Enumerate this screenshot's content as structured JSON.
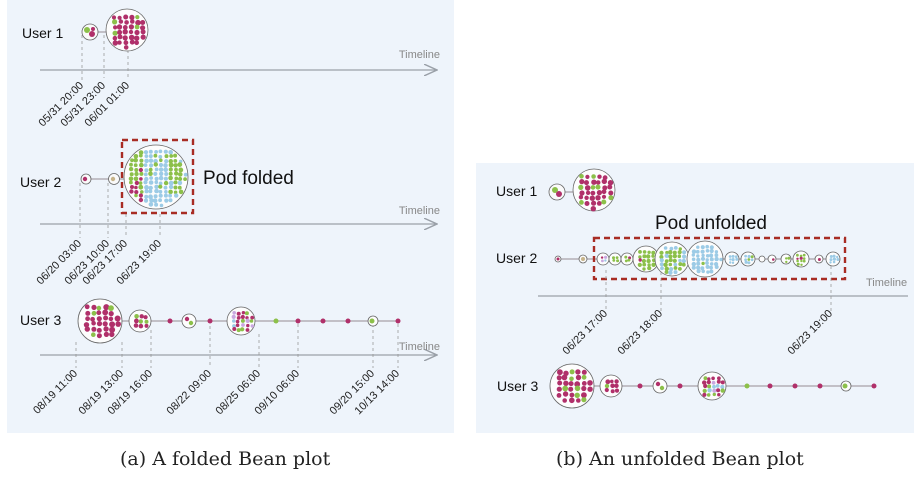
{
  "panel_a": {
    "users": [
      {
        "label": "User 1",
        "timeline_label": "Timeline",
        "dates": [
          "05/31 20:00",
          "05/31 23:00",
          "06/01 01:00"
        ]
      },
      {
        "label": "User 2",
        "timeline_label": "Timeline",
        "pod_label": "Pod folded",
        "dates": [
          "06/20 03:00",
          "06/23 10:00",
          "06/23 17:00",
          "06/23 19:00"
        ]
      },
      {
        "label": "User 3",
        "timeline_label": "Timeline",
        "dates": [
          "08/19 11:00",
          "08/19 13:00",
          "08/19 16:00",
          "08/22 09:00",
          "08/25 06:00",
          "09/10 06:00",
          "09/20 15:00",
          "10/13 14:00"
        ]
      }
    ]
  },
  "panel_b": {
    "users": [
      {
        "label": "User 1"
      },
      {
        "label": "User 2",
        "pod_label": "Pod unfolded",
        "timeline_label": "Timeline",
        "dates": [
          "06/23 17:00",
          "06/23 18:00",
          "06/23 19:00"
        ]
      },
      {
        "label": "User 3"
      }
    ]
  },
  "captions": {
    "a": "(a) A folded Bean plot",
    "b": "(b) An unfolded Bean plot"
  },
  "colors": {
    "background": "#eef4fb",
    "bean_pink": "#b0306a",
    "bean_green": "#8cc04a",
    "bean_blue": "#9ccbe6",
    "bean_lilac": "#c9a8e0",
    "pod_border": "#a82c24",
    "axis": "#9aa0a8"
  }
}
